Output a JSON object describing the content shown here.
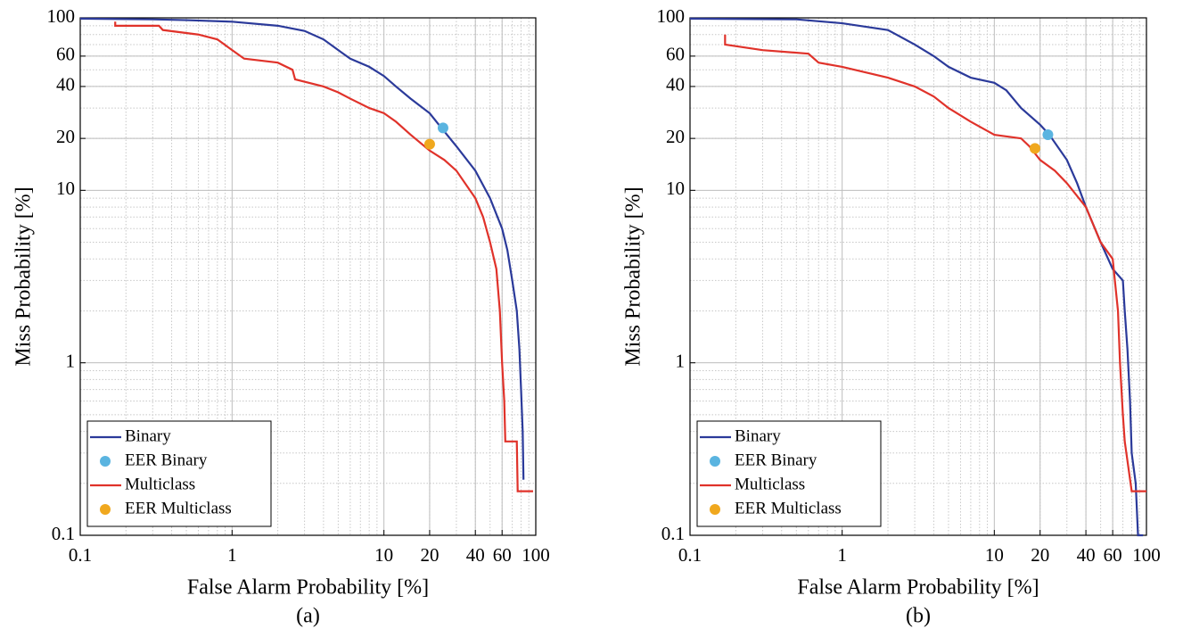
{
  "chart_data": [
    {
      "type": "line",
      "xlabel": "False Alarm Probability [%]",
      "ylabel": "Miss Probability [%]",
      "caption": "(a)",
      "xscale": "log",
      "yscale": "log",
      "xlim": [
        0.1,
        100
      ],
      "ylim": [
        0.1,
        100
      ],
      "xticks": [
        0.1,
        1,
        10,
        20,
        40,
        60,
        100
      ],
      "yticks": [
        0.1,
        1,
        10,
        20,
        40,
        60,
        100
      ],
      "grid": true,
      "minor_grid": true,
      "legend": "lower left",
      "series": [
        {
          "name": "Binary",
          "color": "#2b3a9a",
          "style": "line",
          "x": [
            0.1,
            0.3,
            0.5,
            1,
            2,
            3,
            4,
            5,
            6,
            8,
            10,
            12,
            15,
            20,
            23,
            30,
            40,
            50,
            60,
            65,
            70,
            75,
            78,
            80,
            82,
            83
          ],
          "values": [
            99,
            98,
            97,
            95,
            90,
            84,
            75,
            65,
            58,
            52,
            46,
            40,
            34,
            28,
            24,
            18,
            13,
            9,
            6,
            4.5,
            3,
            2,
            1.2,
            0.7,
            0.4,
            0.21
          ]
        },
        {
          "name": "EER Binary",
          "color": "#5ab4e0",
          "style": "marker",
          "x": [
            24.5
          ],
          "values": [
            23
          ]
        },
        {
          "name": "Multiclass",
          "color": "#e0322a",
          "style": "line",
          "x": [
            0.17,
            0.17,
            0.33,
            0.35,
            0.6,
            0.8,
            1,
            1.2,
            2,
            2.5,
            2.6,
            4,
            5,
            6,
            8,
            10,
            12,
            15,
            20,
            25,
            30,
            40,
            45,
            50,
            55,
            58,
            60,
            62,
            63,
            75,
            76,
            96
          ],
          "values": [
            95,
            90,
            90,
            85,
            80,
            75,
            65,
            58,
            55,
            50,
            44,
            40,
            37,
            34,
            30,
            28,
            25,
            21,
            17,
            15,
            13,
            9,
            7,
            5,
            3.5,
            2,
            1,
            0.6,
            0.35,
            0.35,
            0.18,
            0.18
          ]
        },
        {
          "name": "EER Multiclass",
          "color": "#f0a81e",
          "style": "marker",
          "x": [
            20
          ],
          "values": [
            18.5
          ]
        }
      ]
    },
    {
      "type": "line",
      "xlabel": "False Alarm Probability [%]",
      "ylabel": "Miss Probability [%]",
      "caption": "(b)",
      "xscale": "log",
      "yscale": "log",
      "xlim": [
        0.1,
        100
      ],
      "ylim": [
        0.1,
        100
      ],
      "xticks": [
        0.1,
        1,
        10,
        20,
        40,
        60,
        100
      ],
      "yticks": [
        0.1,
        1,
        10,
        20,
        40,
        60,
        100
      ],
      "grid": true,
      "minor_grid": true,
      "legend": "lower left",
      "series": [
        {
          "name": "Binary",
          "color": "#2b3a9a",
          "style": "line",
          "x": [
            0.1,
            0.5,
            1,
            2,
            3,
            4,
            5,
            7,
            10,
            12,
            15,
            20,
            23,
            30,
            35,
            40,
            50,
            60,
            70,
            72,
            75,
            78,
            80,
            85,
            88,
            95
          ],
          "values": [
            99,
            98,
            93,
            85,
            70,
            60,
            52,
            45,
            42,
            38,
            30,
            24,
            21,
            15,
            11,
            8,
            5,
            3.5,
            3,
            2,
            1.2,
            0.6,
            0.3,
            0.2,
            0.1,
            0.1
          ]
        },
        {
          "name": "EER Binary",
          "color": "#5ab4e0",
          "style": "marker",
          "x": [
            22.5
          ],
          "values": [
            21
          ]
        },
        {
          "name": "Multiclass",
          "color": "#e0322a",
          "style": "line",
          "x": [
            0.17,
            0.17,
            0.3,
            0.6,
            0.7,
            1,
            2,
            3,
            4,
            5,
            7,
            10,
            15,
            17,
            20,
            25,
            30,
            40,
            50,
            60,
            62,
            65,
            67,
            70,
            72,
            80,
            100
          ],
          "values": [
            80,
            70,
            65,
            62,
            55,
            52,
            45,
            40,
            35,
            30,
            25,
            21,
            20,
            18,
            15,
            13,
            11,
            8,
            5,
            4,
            3,
            2,
            1,
            0.5,
            0.35,
            0.18,
            0.18
          ]
        },
        {
          "name": "EER Multiclass",
          "color": "#f0a81e",
          "style": "marker",
          "x": [
            18.5
          ],
          "values": [
            17.5
          ]
        }
      ]
    }
  ]
}
